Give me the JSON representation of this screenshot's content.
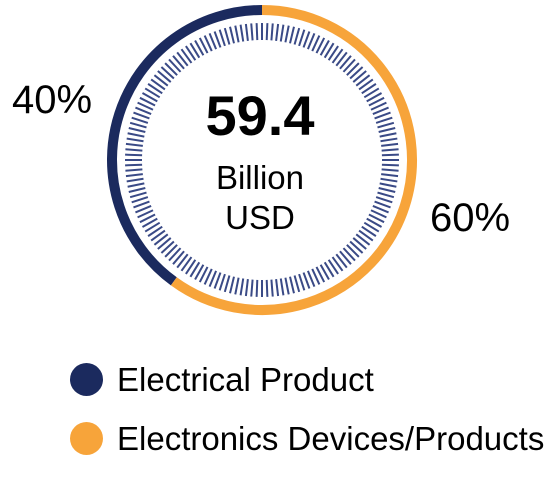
{
  "chart_data": {
    "type": "pie",
    "style": "donut",
    "center": {
      "value": "59.4",
      "unit_line1": "Billion",
      "unit_line2": "USD"
    },
    "slices": [
      {
        "label": "Electrical Product",
        "value": 40,
        "display": "40%",
        "color": "#1b2a5e"
      },
      {
        "label": "Electronics Devices/Products",
        "value": 60,
        "display": "60%",
        "color": "#f7a43a"
      }
    ],
    "legend_position": "bottom-left",
    "tick_ring_color": "#3a4a86"
  }
}
